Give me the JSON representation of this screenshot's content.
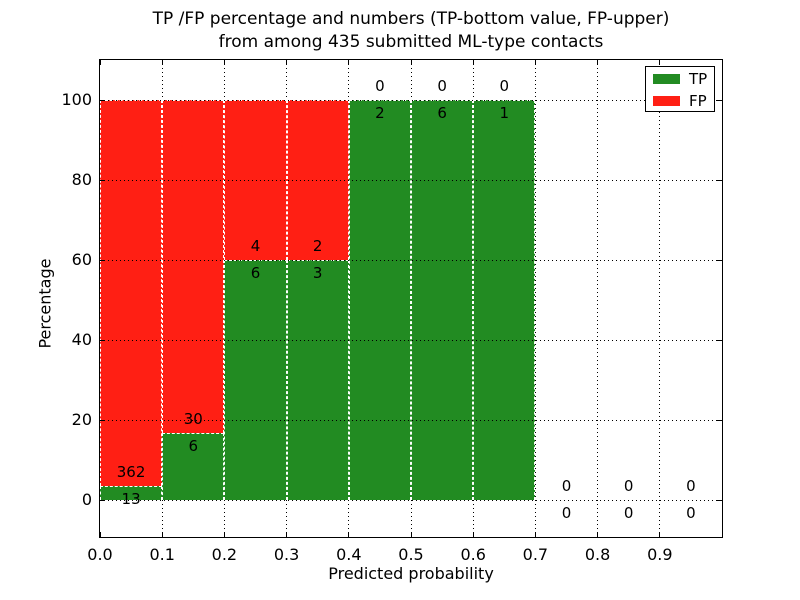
{
  "title": {
    "line1": "TP /FP percentage and numbers (TP-bottom value, FP-upper)",
    "line2": "from among 435 submitted ML-type contacts"
  },
  "axes": {
    "xlabel": "Predicted probability",
    "ylabel": "Percentage",
    "xticks": [
      "0.0",
      "0.1",
      "0.2",
      "0.3",
      "0.4",
      "0.5",
      "0.6",
      "0.7",
      "0.8",
      "0.9"
    ],
    "yticks": [
      "0",
      "20",
      "40",
      "60",
      "80",
      "100"
    ],
    "ytick_values": [
      0,
      20,
      40,
      60,
      80,
      100
    ]
  },
  "legend": {
    "items": [
      {
        "label": "TP",
        "color": "#228b22"
      },
      {
        "label": "FP",
        "color": "#ff1f14"
      }
    ]
  },
  "chart_data": {
    "type": "bar",
    "subtype": "stacked-percentage-histogram",
    "title": "TP /FP percentage and numbers (TP-bottom value, FP-upper) from among 435 submitted ML-type contacts",
    "xlabel": "Predicted probability",
    "ylabel": "Percentage",
    "categories": [
      "0.0-0.1",
      "0.1-0.2",
      "0.2-0.3",
      "0.3-0.4",
      "0.4-0.5",
      "0.5-0.6",
      "0.6-0.7",
      "0.7-0.8",
      "0.8-0.9",
      "0.9-1.0"
    ],
    "bin_starts": [
      0.0,
      0.1,
      0.2,
      0.3,
      0.4,
      0.5,
      0.6,
      0.7,
      0.8,
      0.9
    ],
    "bin_width": 0.1,
    "series": [
      {
        "name": "TP",
        "color": "#228b22",
        "values": [
          13,
          6,
          6,
          3,
          2,
          6,
          1,
          0,
          0,
          0
        ]
      },
      {
        "name": "FP",
        "color": "#ff1f14",
        "values": [
          362,
          30,
          4,
          2,
          0,
          0,
          0,
          0,
          0,
          0
        ]
      }
    ],
    "tp_percent_of_bin": [
      3.47,
      16.67,
      60.0,
      60.0,
      100.0,
      100.0,
      100.0,
      null,
      null,
      null
    ],
    "total_contacts": 435,
    "xlim": [
      0.0,
      1.0
    ],
    "ylim": [
      -9.25,
      110
    ],
    "grid": true,
    "grid_style": "dotted",
    "legend_position": "upper right"
  }
}
